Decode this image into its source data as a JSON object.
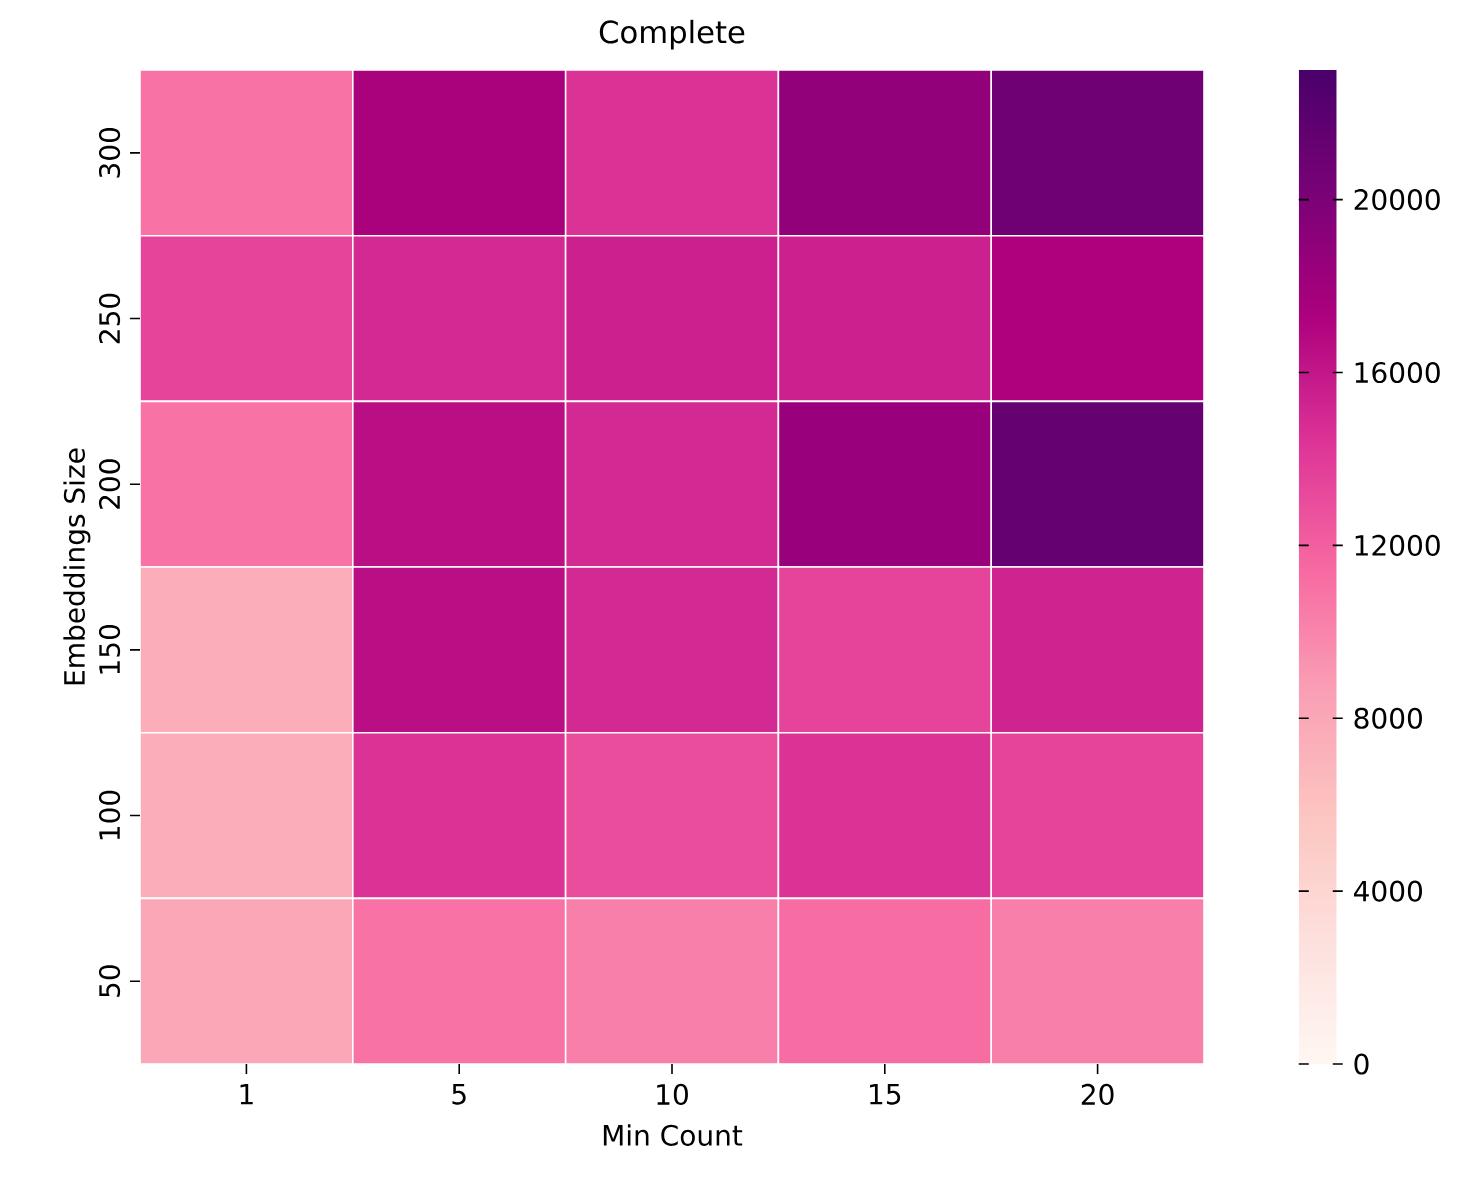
{
  "chart_data": {
    "type": "heatmap",
    "title": "Complete",
    "xlabel": "Min Count",
    "ylabel": "Embeddings Size",
    "categories": [
      "1",
      "5",
      "10",
      "15",
      "20"
    ],
    "y_categories": [
      "300",
      "250",
      "200",
      "150",
      "100",
      "50"
    ],
    "cells": [
      [
        11000,
        17500,
        14500,
        18800,
        20800
      ],
      [
        13500,
        15000,
        15500,
        15500,
        17300
      ],
      [
        11000,
        16500,
        15000,
        18500,
        21300
      ],
      [
        7500,
        16500,
        15000,
        13500,
        15300
      ],
      [
        7500,
        14500,
        13000,
        14500,
        13500
      ],
      [
        8000,
        11000,
        10300,
        11300,
        10300
      ]
    ],
    "clim": [
      0,
      23000
    ],
    "cticks": [
      0,
      4000,
      8000,
      12000,
      16000,
      20000
    ]
  }
}
